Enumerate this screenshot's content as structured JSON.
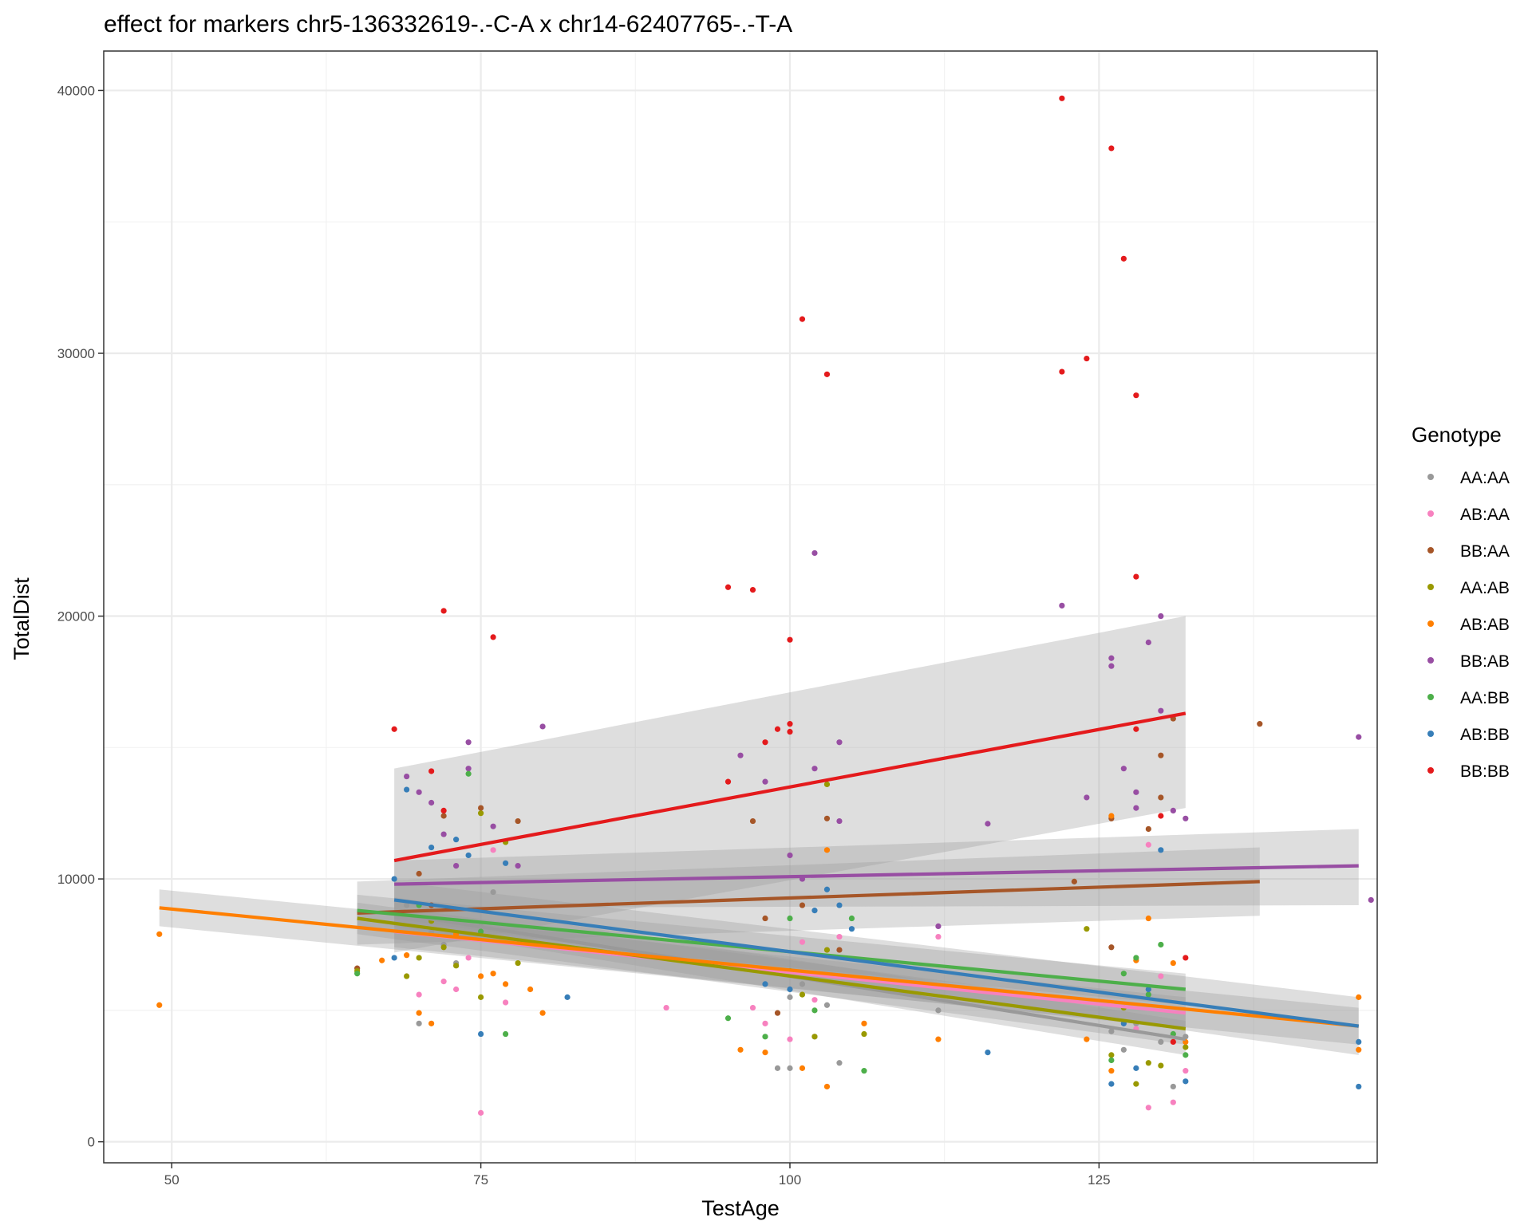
{
  "chart_data": {
    "type": "scatter",
    "title": "effect for markers chr5-136332619-.-C-A x chr14-62407765-.-T-A",
    "xlabel": "TestAge",
    "ylabel": "TotalDist",
    "xlim": [
      44.5,
      147.5
    ],
    "ylim": [
      -800,
      41500
    ],
    "x_ticks": [
      50,
      75,
      100,
      125
    ],
    "y_ticks": [
      0,
      10000,
      20000,
      30000,
      40000
    ],
    "x_tick_labels": [
      "50",
      "75",
      "100",
      "125"
    ],
    "y_tick_labels": [
      "0",
      "10000",
      "20000",
      "30000",
      "40000"
    ],
    "grid": true,
    "legend": {
      "title": "Genotype",
      "position": "right"
    },
    "series": [
      {
        "name": "AA:AA",
        "color": "#999999",
        "points": [
          [
            69,
            9000
          ],
          [
            70,
            4500
          ],
          [
            71,
            8000
          ],
          [
            72,
            7500
          ],
          [
            73,
            6800
          ],
          [
            75,
            8200
          ],
          [
            76,
            9500
          ],
          [
            99,
            2800
          ],
          [
            100,
            2800
          ],
          [
            100,
            5500
          ],
          [
            101,
            6000
          ],
          [
            102,
            4000
          ],
          [
            103,
            5200
          ],
          [
            104,
            3000
          ],
          [
            112,
            5000
          ],
          [
            126,
            4200
          ],
          [
            127,
            3500
          ],
          [
            128,
            4500
          ],
          [
            129,
            5800
          ],
          [
            130,
            3800
          ],
          [
            131,
            2100
          ],
          [
            132,
            4000
          ]
        ],
        "fit": [
          [
            68,
            8700
          ],
          [
            132,
            3900
          ]
        ],
        "ci": [
          [
            8200,
            9300
          ],
          [
            3300,
            4600
          ]
        ]
      },
      {
        "name": "AB:AA",
        "color": "#F781BF",
        "points": [
          [
            70,
            5600
          ],
          [
            72,
            6100
          ],
          [
            73,
            5800
          ],
          [
            74,
            7000
          ],
          [
            75,
            1100
          ],
          [
            76,
            11100
          ],
          [
            77,
            5300
          ],
          [
            90,
            5100
          ],
          [
            97,
            5100
          ],
          [
            98,
            4500
          ],
          [
            100,
            3900
          ],
          [
            101,
            7600
          ],
          [
            102,
            5400
          ],
          [
            104,
            7800
          ],
          [
            112,
            7800
          ],
          [
            126,
            5300
          ],
          [
            128,
            4300
          ],
          [
            129,
            1300
          ],
          [
            129,
            11300
          ],
          [
            130,
            6300
          ],
          [
            131,
            1500
          ],
          [
            132,
            2700
          ]
        ],
        "fit": [
          [
            68,
            8000
          ],
          [
            132,
            4900
          ]
        ],
        "ci": [
          [
            7400,
            8600
          ],
          [
            4300,
            5500
          ]
        ]
      },
      {
        "name": "BB:AA",
        "color": "#A65628",
        "points": [
          [
            65,
            6600
          ],
          [
            70,
            10200
          ],
          [
            71,
            9000
          ],
          [
            72,
            12400
          ],
          [
            75,
            12700
          ],
          [
            78,
            12200
          ],
          [
            97,
            12200
          ],
          [
            98,
            8500
          ],
          [
            99,
            4900
          ],
          [
            101,
            9000
          ],
          [
            103,
            12300
          ],
          [
            104,
            7300
          ],
          [
            123,
            9900
          ],
          [
            126,
            7400
          ],
          [
            126,
            12300
          ],
          [
            129,
            11900
          ],
          [
            130,
            14700
          ],
          [
            130,
            13100
          ],
          [
            131,
            16100
          ],
          [
            138,
            15900
          ]
        ],
        "fit": [
          [
            65,
            8700
          ],
          [
            138,
            9900
          ]
        ],
        "ci": [
          [
            7500,
            9900
          ],
          [
            8600,
            11200
          ]
        ]
      },
      {
        "name": "AA:AB",
        "color": "#999900",
        "points": [
          [
            65,
            6500
          ],
          [
            69,
            6300
          ],
          [
            70,
            7000
          ],
          [
            71,
            8400
          ],
          [
            72,
            7400
          ],
          [
            73,
            6700
          ],
          [
            75,
            12500
          ],
          [
            75,
            5500
          ],
          [
            77,
            11400
          ],
          [
            78,
            6800
          ],
          [
            101,
            5600
          ],
          [
            102,
            4000
          ],
          [
            103,
            13600
          ],
          [
            103,
            7300
          ],
          [
            106,
            4100
          ],
          [
            124,
            8100
          ],
          [
            126,
            3300
          ],
          [
            127,
            5100
          ],
          [
            128,
            2200
          ],
          [
            129,
            3000
          ],
          [
            130,
            2900
          ],
          [
            132,
            3600
          ]
        ],
        "fit": [
          [
            65,
            8500
          ],
          [
            132,
            4300
          ]
        ],
        "ci": [
          [
            7900,
            9100
          ],
          [
            3700,
            4900
          ]
        ]
      },
      {
        "name": "AB:AB",
        "color": "#FF7F00",
        "points": [
          [
            49,
            7900
          ],
          [
            49,
            5200
          ],
          [
            67,
            6900
          ],
          [
            69,
            7100
          ],
          [
            70,
            4900
          ],
          [
            71,
            4500
          ],
          [
            73,
            7900
          ],
          [
            75,
            6300
          ],
          [
            76,
            6400
          ],
          [
            77,
            6000
          ],
          [
            79,
            5800
          ],
          [
            80,
            4900
          ],
          [
            96,
            3500
          ],
          [
            98,
            3400
          ],
          [
            101,
            2800
          ],
          [
            103,
            2100
          ],
          [
            103,
            11100
          ],
          [
            106,
            4500
          ],
          [
            112,
            3900
          ],
          [
            124,
            3900
          ],
          [
            126,
            12400
          ],
          [
            126,
            2700
          ],
          [
            128,
            6900
          ],
          [
            129,
            8500
          ],
          [
            131,
            6800
          ],
          [
            132,
            3800
          ],
          [
            146,
            5500
          ],
          [
            146,
            3500
          ]
        ],
        "fit": [
          [
            49,
            8900
          ],
          [
            146,
            4400
          ]
        ],
        "ci": [
          [
            8200,
            9600
          ],
          [
            3700,
            5100
          ]
        ]
      },
      {
        "name": "BB:AB",
        "color": "#984EA3",
        "points": [
          [
            69,
            13900
          ],
          [
            70,
            13300
          ],
          [
            71,
            12900
          ],
          [
            72,
            11700
          ],
          [
            73,
            10500
          ],
          [
            74,
            15200
          ],
          [
            74,
            14200
          ],
          [
            76,
            12000
          ],
          [
            78,
            10500
          ],
          [
            80,
            15800
          ],
          [
            96,
            14700
          ],
          [
            98,
            13700
          ],
          [
            100,
            10900
          ],
          [
            101,
            10000
          ],
          [
            102,
            22400
          ],
          [
            102,
            14200
          ],
          [
            104,
            15200
          ],
          [
            104,
            12200
          ],
          [
            112,
            8200
          ],
          [
            116,
            12100
          ],
          [
            122,
            20400
          ],
          [
            124,
            13100
          ],
          [
            126,
            18400
          ],
          [
            126,
            18100
          ],
          [
            127,
            14200
          ],
          [
            128,
            13300
          ],
          [
            128,
            12700
          ],
          [
            129,
            19000
          ],
          [
            130,
            20000
          ],
          [
            130,
            16400
          ],
          [
            131,
            12600
          ],
          [
            132,
            12300
          ],
          [
            146,
            15400
          ],
          [
            147,
            9200
          ]
        ],
        "fit": [
          [
            68,
            9800
          ],
          [
            146,
            10500
          ]
        ],
        "ci": [
          [
            8900,
            10700
          ],
          [
            9000,
            11900
          ]
        ]
      },
      {
        "name": "AA:BB",
        "color": "#4DAF4A",
        "points": [
          [
            65,
            6400
          ],
          [
            70,
            9000
          ],
          [
            74,
            14000
          ],
          [
            75,
            8000
          ],
          [
            77,
            4100
          ],
          [
            95,
            4700
          ],
          [
            98,
            4000
          ],
          [
            100,
            6500
          ],
          [
            100,
            8500
          ],
          [
            102,
            5000
          ],
          [
            105,
            8500
          ],
          [
            106,
            2700
          ],
          [
            126,
            3100
          ],
          [
            127,
            6400
          ],
          [
            128,
            7000
          ],
          [
            129,
            5600
          ],
          [
            130,
            7500
          ],
          [
            131,
            4100
          ],
          [
            132,
            3300
          ]
        ],
        "fit": [
          [
            65,
            8800
          ],
          [
            132,
            5800
          ]
        ],
        "ci": [
          [
            8200,
            9400
          ],
          [
            5200,
            6400
          ]
        ]
      },
      {
        "name": "AB:BB",
        "color": "#377EB8",
        "points": [
          [
            68,
            10000
          ],
          [
            68,
            7000
          ],
          [
            69,
            13400
          ],
          [
            71,
            11200
          ],
          [
            73,
            11500
          ],
          [
            74,
            10900
          ],
          [
            75,
            4100
          ],
          [
            77,
            10600
          ],
          [
            82,
            5500
          ],
          [
            98,
            6000
          ],
          [
            100,
            5800
          ],
          [
            102,
            8800
          ],
          [
            103,
            9600
          ],
          [
            104,
            9000
          ],
          [
            105,
            8100
          ],
          [
            116,
            3400
          ],
          [
            126,
            2200
          ],
          [
            127,
            4500
          ],
          [
            128,
            2800
          ],
          [
            129,
            5800
          ],
          [
            130,
            11100
          ],
          [
            132,
            2300
          ],
          [
            146,
            2100
          ],
          [
            146,
            3800
          ]
        ],
        "fit": [
          [
            68,
            9200
          ],
          [
            146,
            4400
          ]
        ],
        "ci": [
          [
            8500,
            9900
          ],
          [
            3300,
            5500
          ]
        ]
      },
      {
        "name": "BB:BB",
        "color": "#E41A1C",
        "points": [
          [
            68,
            15700
          ],
          [
            71,
            14100
          ],
          [
            72,
            20200
          ],
          [
            72,
            12600
          ],
          [
            76,
            19200
          ],
          [
            95,
            21100
          ],
          [
            95,
            13700
          ],
          [
            97,
            21000
          ],
          [
            98,
            15200
          ],
          [
            99,
            15700
          ],
          [
            100,
            19100
          ],
          [
            100,
            15900
          ],
          [
            100,
            15600
          ],
          [
            101,
            31300
          ],
          [
            103,
            29200
          ],
          [
            122,
            39700
          ],
          [
            122,
            29300
          ],
          [
            124,
            29800
          ],
          [
            126,
            37800
          ],
          [
            127,
            33600
          ],
          [
            128,
            28400
          ],
          [
            128,
            21500
          ],
          [
            128,
            15700
          ],
          [
            130,
            12400
          ],
          [
            131,
            3800
          ],
          [
            132,
            7000
          ]
        ],
        "fit": [
          [
            68,
            10700
          ],
          [
            132,
            16300
          ]
        ],
        "ci": [
          [
            7200,
            14200
          ],
          [
            12700,
            20000
          ]
        ]
      }
    ]
  }
}
